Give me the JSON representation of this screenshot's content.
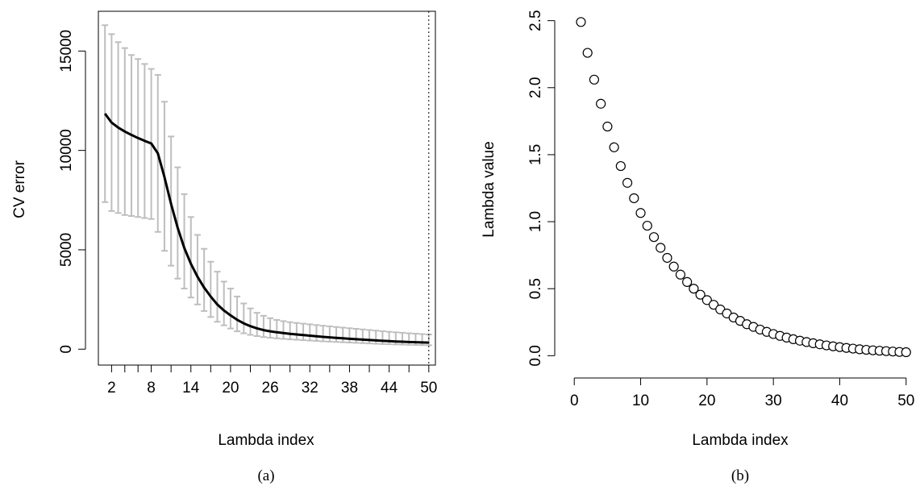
{
  "colors": {
    "line": "#000000",
    "errorbar": "#bebebe",
    "point_fill": "#ffffff",
    "point_stroke": "#000000",
    "background": "#ffffff"
  },
  "chart_data": [
    {
      "type": "line",
      "caption": "(a)",
      "title": "",
      "xlabel": "Lambda index",
      "ylabel": "CV error",
      "xlim": [
        0,
        51
      ],
      "ylim": [
        -800,
        17000
      ],
      "x_ticks": [
        2,
        4,
        6,
        8,
        11,
        14,
        17,
        20,
        23,
        26,
        29,
        32,
        35,
        38,
        41,
        44,
        47,
        50
      ],
      "x_tick_labels": [
        "2",
        "",
        "",
        "8",
        "",
        "14",
        "",
        "20",
        "",
        "26",
        "",
        "32",
        "",
        "38",
        "",
        "44",
        "",
        "50"
      ],
      "y_ticks": [
        0,
        5000,
        10000,
        15000
      ],
      "y_tick_labels": [
        "0",
        "5000",
        "10000",
        "15000"
      ],
      "vline_x": 50,
      "grid": false,
      "x": [
        1,
        2,
        3,
        4,
        5,
        6,
        7,
        8,
        9,
        10,
        11,
        12,
        13,
        14,
        15,
        16,
        17,
        18,
        19,
        20,
        21,
        22,
        23,
        24,
        25,
        26,
        27,
        28,
        29,
        30,
        31,
        32,
        33,
        34,
        35,
        36,
        37,
        38,
        39,
        40,
        41,
        42,
        43,
        44,
        45,
        46,
        47,
        48,
        49,
        50
      ],
      "series": [
        {
          "values": [
            11850,
            11400,
            11150,
            10950,
            10780,
            10620,
            10480,
            10350,
            9850,
            8650,
            7300,
            6100,
            5100,
            4300,
            3650,
            3100,
            2650,
            2250,
            1950,
            1700,
            1480,
            1300,
            1160,
            1050,
            960,
            900,
            850,
            810,
            770,
            740,
            710,
            680,
            650,
            620,
            595,
            570,
            545,
            520,
            500,
            480,
            460,
            440,
            420,
            405,
            390,
            375,
            360,
            350,
            340,
            330
          ],
          "lower": [
            7400,
            6950,
            6850,
            6750,
            6700,
            6650,
            6600,
            6550,
            5900,
            4950,
            4200,
            3550,
            3050,
            2600,
            2250,
            1920,
            1620,
            1380,
            1200,
            1040,
            900,
            800,
            720,
            660,
            610,
            575,
            545,
            520,
            495,
            475,
            455,
            435,
            415,
            395,
            380,
            365,
            350,
            335,
            320,
            305,
            290,
            275,
            260,
            250,
            240,
            230,
            220,
            212,
            205,
            198
          ],
          "upper": [
            16300,
            15850,
            15450,
            15150,
            14800,
            14600,
            14350,
            14100,
            13800,
            12450,
            10700,
            9150,
            7800,
            6650,
            5750,
            5050,
            4400,
            3900,
            3400,
            3050,
            2650,
            2300,
            2050,
            1830,
            1680,
            1560,
            1470,
            1410,
            1360,
            1320,
            1285,
            1250,
            1215,
            1180,
            1150,
            1115,
            1085,
            1055,
            1025,
            995,
            965,
            935,
            905,
            875,
            850,
            825,
            800,
            780,
            760,
            740
          ]
        }
      ]
    },
    {
      "type": "scatter",
      "caption": "(b)",
      "title": "",
      "xlabel": "Lambda index",
      "ylabel": "Lambda value",
      "xlim": [
        -1,
        51
      ],
      "ylim": [
        -0.07,
        2.57
      ],
      "x_ticks": [
        0,
        10,
        20,
        30,
        40,
        50
      ],
      "x_tick_labels": [
        "0",
        "10",
        "20",
        "30",
        "40",
        "50"
      ],
      "y_ticks": [
        0,
        0.5,
        1,
        1.5,
        2,
        2.5
      ],
      "y_tick_labels": [
        "0.0",
        "0.5",
        "1.0",
        "1.5",
        "2.0",
        "2.5"
      ],
      "grid": false,
      "x": [
        1,
        2,
        3,
        4,
        5,
        6,
        7,
        8,
        9,
        10,
        11,
        12,
        13,
        14,
        15,
        16,
        17,
        18,
        19,
        20,
        21,
        22,
        23,
        24,
        25,
        26,
        27,
        28,
        29,
        30,
        31,
        32,
        33,
        34,
        35,
        36,
        37,
        38,
        39,
        40,
        41,
        42,
        43,
        44,
        45,
        46,
        47,
        48,
        49,
        50
      ],
      "y": [
        2.49,
        2.26,
        2.06,
        1.88,
        1.71,
        1.555,
        1.415,
        1.29,
        1.175,
        1.065,
        0.97,
        0.885,
        0.805,
        0.73,
        0.665,
        0.605,
        0.55,
        0.5,
        0.455,
        0.415,
        0.38,
        0.345,
        0.315,
        0.285,
        0.26,
        0.235,
        0.215,
        0.195,
        0.178,
        0.162,
        0.148,
        0.135,
        0.123,
        0.112,
        0.102,
        0.093,
        0.085,
        0.077,
        0.07,
        0.064,
        0.058,
        0.053,
        0.048,
        0.044,
        0.04,
        0.037,
        0.034,
        0.031,
        0.028,
        0.026
      ]
    }
  ]
}
